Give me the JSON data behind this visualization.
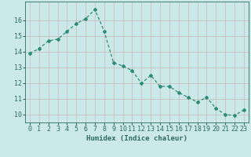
{
  "x": [
    0,
    1,
    2,
    3,
    4,
    5,
    6,
    7,
    8,
    9,
    10,
    11,
    12,
    13,
    14,
    15,
    16,
    17,
    18,
    19,
    20,
    21,
    22,
    23
  ],
  "y": [
    13.9,
    14.2,
    14.7,
    14.8,
    15.3,
    15.8,
    16.1,
    16.7,
    15.3,
    13.3,
    13.1,
    12.8,
    12.0,
    12.5,
    11.8,
    11.8,
    11.4,
    11.1,
    10.8,
    11.1,
    10.4,
    10.0,
    9.95,
    10.3
  ],
  "line_color": "#2e8b74",
  "marker": "D",
  "marker_size": 2.0,
  "linewidth": 0.9,
  "bg_color": "#cce9ea",
  "grid_color_v": "#c8b8b8",
  "grid_color_h": "#c8b8b8",
  "xlabel": "Humidex (Indice chaleur)",
  "xlim": [
    -0.5,
    23.5
  ],
  "ylim": [
    9.5,
    17.2
  ],
  "yticks": [
    10,
    11,
    12,
    13,
    14,
    15,
    16
  ],
  "xticks": [
    0,
    1,
    2,
    3,
    4,
    5,
    6,
    7,
    8,
    9,
    10,
    11,
    12,
    13,
    14,
    15,
    16,
    17,
    18,
    19,
    20,
    21,
    22,
    23
  ],
  "xlabel_fontsize": 6.5,
  "tick_fontsize": 6.0,
  "axis_color": "#2e6b60"
}
